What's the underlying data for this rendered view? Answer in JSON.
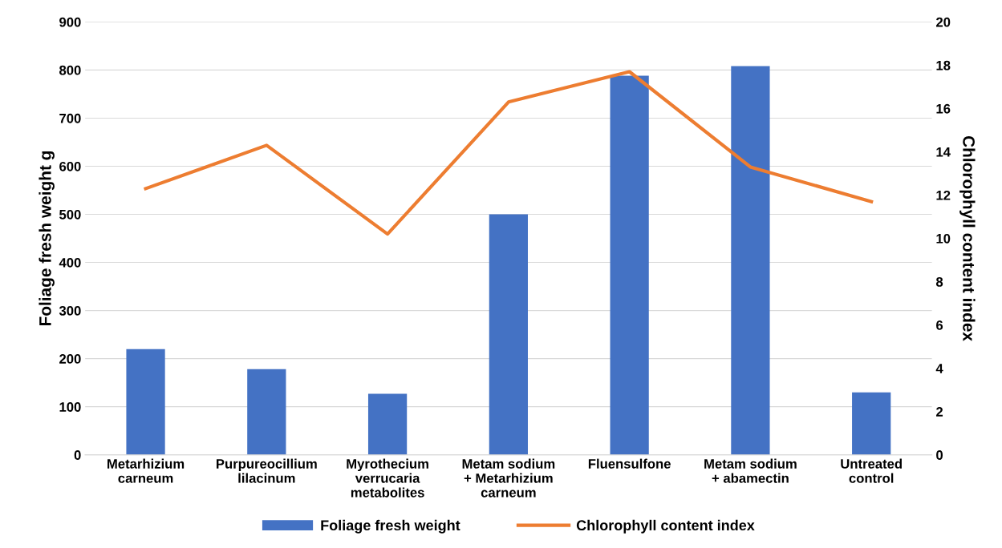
{
  "chart_data": {
    "type": "bar",
    "categories": [
      "Metarhizium\ncarneum",
      "Purpureocillium\nlilacinum",
      "Myrothecium\nverrucaria\nmetabolites",
      "Metam sodium\n+ Metarhizium\ncarneum",
      "Fluensulfone",
      "Metam sodium\n+ abamectin",
      "Untreated\ncontrol"
    ],
    "series": [
      {
        "name": "Foliage fresh weight",
        "color": "#4472c4",
        "values": [
          220,
          178,
          127,
          500,
          788,
          808,
          130
        ]
      },
      {
        "name": "Chlorophyll content index",
        "type": "line",
        "axis": "y2",
        "color": "#ed7d31",
        "values": [
          12.3,
          14.3,
          10.2,
          16.3,
          17.7,
          13.3,
          11.7
        ]
      }
    ],
    "ylabel": "Foliage fresh weight g",
    "y2label": "Chlorophyll content index",
    "ylim": [
      0,
      900
    ],
    "yticks": [
      0,
      100,
      200,
      300,
      400,
      500,
      600,
      700,
      800,
      900
    ],
    "y2lim": [
      0,
      20
    ],
    "y2ticks": [
      0,
      2,
      4,
      6,
      8,
      10,
      12,
      14,
      16,
      18,
      20
    ],
    "grid": "y",
    "legend": "bottom",
    "marker": "none",
    "line_style": "solid"
  }
}
